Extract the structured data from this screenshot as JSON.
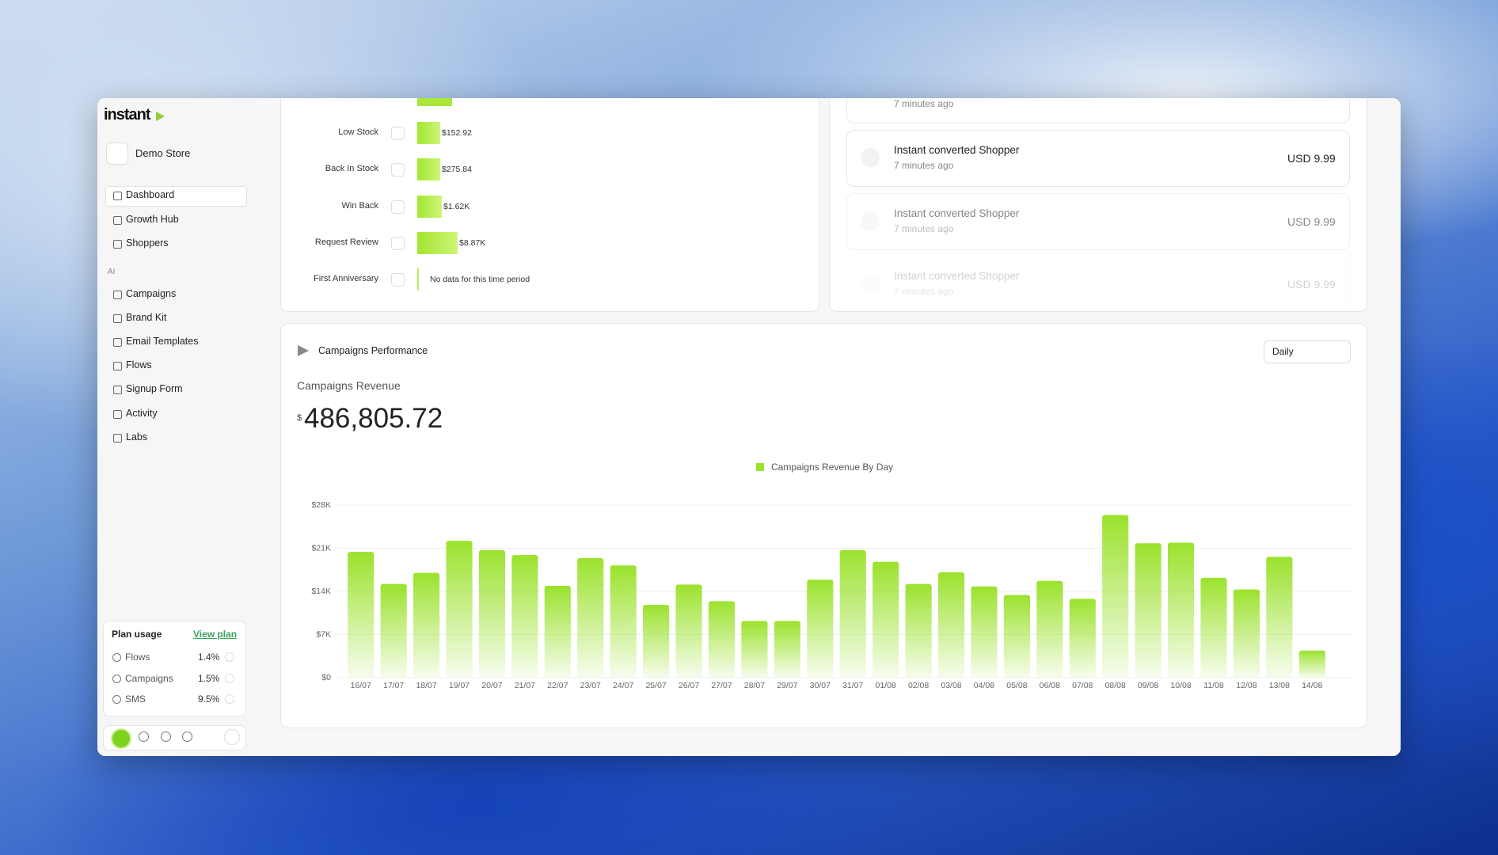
{
  "sidebar": {
    "logo": "instant",
    "store": "Demo Store",
    "nav": [
      "Dashboard",
      "Growth Hub",
      "Shoppers"
    ],
    "section": "AI",
    "ai_nav": [
      "Campaigns",
      "Brand Kit",
      "Email Templates",
      "Flows",
      "Signup Form",
      "Activity",
      "Labs"
    ],
    "plan": {
      "title": "Plan usage",
      "link": "View plan",
      "rows": [
        {
          "name": "Flows",
          "value": "1.4%"
        },
        {
          "name": "Campaigns",
          "value": "1.5%"
        },
        {
          "name": "SMS",
          "value": "9.5%"
        }
      ]
    }
  },
  "flows": [
    {
      "name": "Low Stock",
      "value": "$152.92"
    },
    {
      "name": "Back In Stock",
      "value": "$275.84"
    },
    {
      "name": "Win Back",
      "value": "$1.62K"
    },
    {
      "name": "Request Review",
      "value": "$8.87K"
    },
    {
      "name": "First Anniversary",
      "value": "No data for this time period"
    }
  ],
  "activity": {
    "top_time": "7 minutes ago",
    "items": [
      {
        "title": "Instant converted Shopper",
        "time": "7 minutes ago",
        "amount": "USD 9.99"
      },
      {
        "title": "Instant converted Shopper",
        "time": "7 minutes ago",
        "amount": "USD 9.99"
      },
      {
        "title": "Instant converted Shopper",
        "time": "7 minutes ago",
        "amount": "USD 9.99"
      }
    ]
  },
  "panel": {
    "title": "Campaigns Performance",
    "dropdown": "Daily",
    "metric_label": "Campaigns Revenue",
    "currency": "$",
    "total": "486,805.72"
  },
  "chart_data": {
    "type": "bar",
    "categories": [
      "16/07",
      "17/07",
      "18/07",
      "19/07",
      "20/07",
      "21/07",
      "22/07",
      "23/07",
      "24/07",
      "25/07",
      "26/07",
      "27/07",
      "28/07",
      "29/07",
      "30/07",
      "31/07",
      "01/08",
      "02/08",
      "03/08",
      "04/08",
      "05/08",
      "06/08",
      "07/08",
      "08/08",
      "09/08",
      "10/08",
      "11/08",
      "12/08",
      "13/08",
      "14/08"
    ],
    "series": [
      {
        "name": "Campaigns Revenue By Day",
        "color": "#9be22d",
        "values": [
          20400,
          15200,
          17000,
          22200,
          20700,
          19900,
          14900,
          19400,
          18200,
          11800,
          15100,
          12400,
          9200,
          9200,
          15900,
          20700,
          18800,
          15200,
          17100,
          14800,
          13400,
          15700,
          12800,
          26400,
          21800,
          21900,
          16200,
          14300,
          19600,
          4400
        ]
      }
    ],
    "ylim": [
      0,
      28000
    ],
    "yticks": [
      {
        "value": 0,
        "label": "$0"
      },
      {
        "value": 7000,
        "label": "$7K"
      },
      {
        "value": 14000,
        "label": "$14K"
      },
      {
        "value": 21000,
        "label": "$21K"
      },
      {
        "value": 28000,
        "label": "$28K"
      }
    ],
    "grid": true
  }
}
